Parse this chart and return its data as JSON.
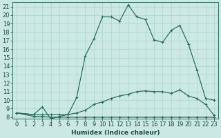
{
  "xlabel": "Humidex (Indice chaleur)",
  "background_color": "#cce8e4",
  "grid_color": "#aad4ce",
  "line_color": "#2a6e60",
  "xlim": [
    -0.5,
    23.5
  ],
  "ylim": [
    7.8,
    21.5
  ],
  "xticks": [
    0,
    1,
    2,
    3,
    4,
    5,
    6,
    7,
    8,
    9,
    10,
    11,
    12,
    13,
    14,
    15,
    16,
    17,
    18,
    19,
    20,
    21,
    22,
    23
  ],
  "yticks": [
    8,
    9,
    10,
    11,
    12,
    13,
    14,
    15,
    16,
    17,
    18,
    19,
    20,
    21
  ],
  "curve1_x": [
    0,
    2,
    3,
    4,
    5,
    6,
    7,
    8,
    9,
    10,
    11,
    12,
    13,
    14,
    15,
    16,
    17,
    18,
    19,
    20,
    21,
    22,
    23
  ],
  "curve1_y": [
    8.5,
    8.3,
    9.2,
    7.8,
    8.1,
    8.3,
    10.3,
    15.2,
    17.2,
    19.8,
    19.8,
    19.3,
    21.2,
    19.8,
    19.5,
    17.1,
    16.8,
    18.2,
    18.8,
    16.6,
    13.5,
    10.2,
    10.0
  ],
  "curve2_x": [
    0,
    2,
    3,
    4,
    5,
    6,
    7,
    8,
    9,
    10,
    11,
    12,
    13,
    14,
    15,
    16,
    17,
    18,
    19,
    20,
    21,
    22,
    23
  ],
  "curve2_y": [
    8.5,
    8.3,
    8.3,
    8.3,
    8.3,
    8.3,
    8.5,
    8.8,
    9.5,
    9.8,
    10.2,
    10.5,
    10.7,
    11.0,
    11.1,
    11.0,
    11.0,
    10.8,
    11.2,
    10.5,
    10.2,
    9.5,
    8.2
  ],
  "curve3_x": [
    0,
    2,
    3,
    4,
    5,
    6,
    7,
    8,
    9,
    10,
    11,
    12,
    13,
    14,
    15,
    16,
    17,
    18,
    19,
    20,
    21,
    22,
    23
  ],
  "curve3_y": [
    8.5,
    8.1,
    8.1,
    8.0,
    8.0,
    8.0,
    8.0,
    8.0,
    8.0,
    8.0,
    8.0,
    8.0,
    8.0,
    8.0,
    8.0,
    8.0,
    8.0,
    8.0,
    8.0,
    8.0,
    8.0,
    8.0,
    8.0
  ],
  "markersize": 3,
  "linewidth": 0.9,
  "font_size": 6.5
}
